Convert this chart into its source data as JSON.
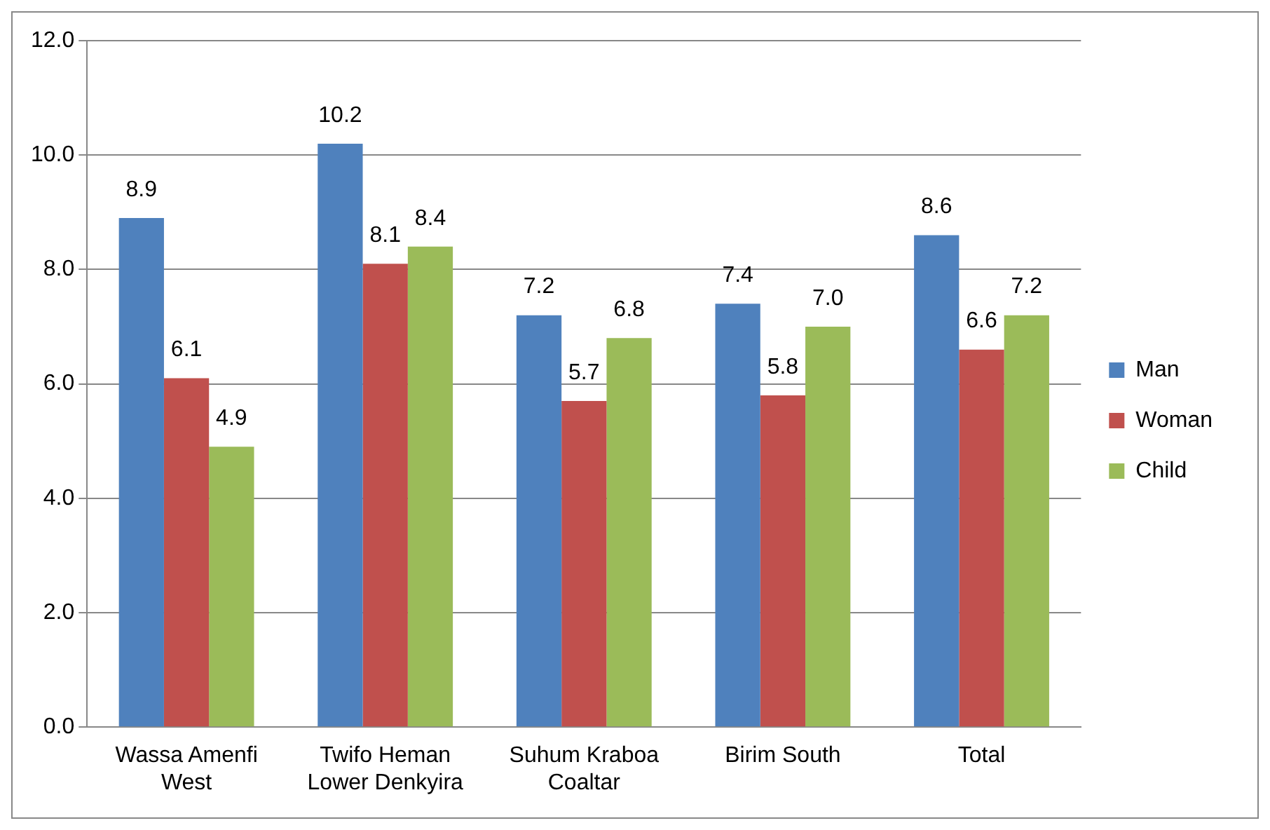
{
  "chart_data": {
    "type": "bar",
    "categories": [
      "Wassa Amenfi West",
      "Twifo Heman Lower Denkyira",
      "Suhum Kraboa Coaltar",
      "Birim South",
      "Total"
    ],
    "series": [
      {
        "name": "Man",
        "color": "#4f81bd",
        "values": [
          8.9,
          10.2,
          7.2,
          7.4,
          8.6
        ],
        "value_labels": [
          "8.9",
          "10.2",
          "7.2",
          "7.4",
          "8.6"
        ]
      },
      {
        "name": "Woman",
        "color": "#c0504d",
        "values": [
          6.1,
          8.1,
          5.7,
          5.8,
          6.6
        ],
        "value_labels": [
          "6.1",
          "8.1",
          "5.7",
          "5.8",
          "6.6"
        ]
      },
      {
        "name": "Child",
        "color": "#9bbb59",
        "values": [
          4.9,
          8.4,
          6.8,
          7.0,
          7.2
        ],
        "value_labels": [
          "4.9",
          "8.4",
          "6.8",
          "7.0",
          "7.2"
        ]
      }
    ],
    "ylim": [
      0,
      12
    ],
    "yticks": [
      {
        "value": 0,
        "label": "0.0"
      },
      {
        "value": 2,
        "label": "2.0"
      },
      {
        "value": 4,
        "label": "4.0"
      },
      {
        "value": 6,
        "label": "6.0"
      },
      {
        "value": 8,
        "label": "8.0"
      },
      {
        "value": 10,
        "label": "10.0"
      },
      {
        "value": 12,
        "label": "12.0"
      }
    ],
    "grid": "y",
    "legend": "right"
  }
}
